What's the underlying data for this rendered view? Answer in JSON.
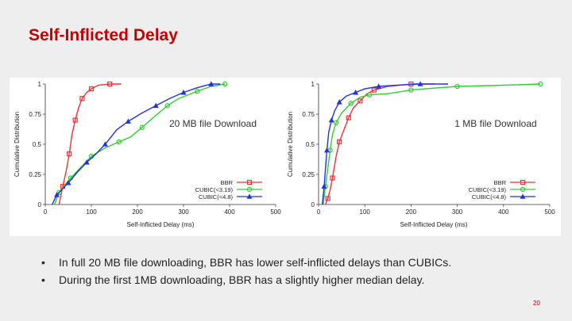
{
  "slide": {
    "title": "Self-Inflicted Delay",
    "bullets": [
      "In full 20 MB file downloading, BBR has lower self-inflicted delays than CUBICs.",
      "During the first 1MB downloading, BBR has a slightly higher median delay."
    ],
    "page_number": "20",
    "title_color": "#c00000"
  },
  "chart_data": [
    {
      "type": "line",
      "title": "20 MB file Download",
      "xlabel": "Self-Inflicted Delay (ms)",
      "ylabel": "Cumulative Distribution",
      "xlim": [
        0,
        500
      ],
      "ylim": [
        0,
        1
      ],
      "xticks": [
        "0",
        "100",
        "200",
        "300",
        "400",
        "500"
      ],
      "yticks": [
        "0",
        "0.25",
        "0.5",
        "0.75",
        "1"
      ],
      "grid": false,
      "legend_position": "bottom-right",
      "series": [
        {
          "name": "BBR",
          "color": "#e8333a",
          "marker": "square",
          "x": [
            30,
            38,
            45,
            52,
            58,
            65,
            72,
            80,
            90,
            100,
            115,
            140,
            165
          ],
          "y": [
            0,
            0.15,
            0.27,
            0.42,
            0.58,
            0.7,
            0.8,
            0.88,
            0.93,
            0.96,
            0.99,
            1.0,
            1.0
          ]
        },
        {
          "name": "CUBIC(<3.19)",
          "color": "#33cc33",
          "marker": "circle",
          "x": [
            20,
            30,
            40,
            55,
            75,
            100,
            130,
            160,
            185,
            210,
            240,
            265,
            290,
            330,
            360,
            390
          ],
          "y": [
            0,
            0.1,
            0.15,
            0.22,
            0.3,
            0.4,
            0.47,
            0.52,
            0.56,
            0.64,
            0.74,
            0.82,
            0.88,
            0.94,
            0.98,
            1.0
          ]
        },
        {
          "name": "CUBIC(<4.8)",
          "color": "#2233dd",
          "marker": "triangle",
          "x": [
            15,
            25,
            35,
            50,
            70,
            90,
            110,
            130,
            155,
            180,
            210,
            240,
            270,
            300,
            330,
            360,
            380
          ],
          "y": [
            0,
            0.08,
            0.12,
            0.18,
            0.27,
            0.35,
            0.42,
            0.5,
            0.62,
            0.69,
            0.76,
            0.82,
            0.88,
            0.93,
            0.97,
            1.0,
            1.0
          ]
        }
      ]
    },
    {
      "type": "line",
      "title": "1 MB file Download",
      "xlabel": "Self-Inflicted Delay (ms)",
      "ylabel": "Cumulative Distribution",
      "xlim": [
        0,
        500
      ],
      "ylim": [
        0,
        1
      ],
      "xticks": [
        "0",
        "100",
        "200",
        "300",
        "400",
        "500"
      ],
      "yticks": [
        "0",
        "0.25",
        "0.5",
        "0.75",
        "1"
      ],
      "grid": false,
      "legend_position": "bottom-right",
      "series": [
        {
          "name": "BBR",
          "color": "#e8333a",
          "marker": "square",
          "x": [
            15,
            20,
            25,
            30,
            38,
            45,
            55,
            65,
            75,
            90,
            105,
            120,
            150,
            200,
            250
          ],
          "y": [
            0,
            0.05,
            0.12,
            0.22,
            0.4,
            0.52,
            0.62,
            0.72,
            0.8,
            0.86,
            0.92,
            0.95,
            0.98,
            1.0,
            1.0
          ]
        },
        {
          "name": "CUBIC(<3.19)",
          "color": "#33cc33",
          "marker": "circle",
          "x": [
            10,
            15,
            20,
            25,
            30,
            38,
            50,
            70,
            90,
            110,
            150,
            200,
            230,
            300,
            400,
            480
          ],
          "y": [
            0,
            0.15,
            0.3,
            0.45,
            0.58,
            0.68,
            0.76,
            0.84,
            0.89,
            0.91,
            0.92,
            0.95,
            0.96,
            0.98,
            0.99,
            1.0
          ]
        },
        {
          "name": "CUBIC(<4.8)",
          "color": "#2233dd",
          "marker": "triangle",
          "x": [
            8,
            12,
            15,
            18,
            22,
            28,
            35,
            45,
            60,
            80,
            100,
            130,
            170,
            220,
            280
          ],
          "y": [
            0,
            0.15,
            0.3,
            0.45,
            0.6,
            0.7,
            0.78,
            0.85,
            0.9,
            0.93,
            0.96,
            0.98,
            0.99,
            1.0,
            1.0
          ]
        }
      ]
    }
  ]
}
